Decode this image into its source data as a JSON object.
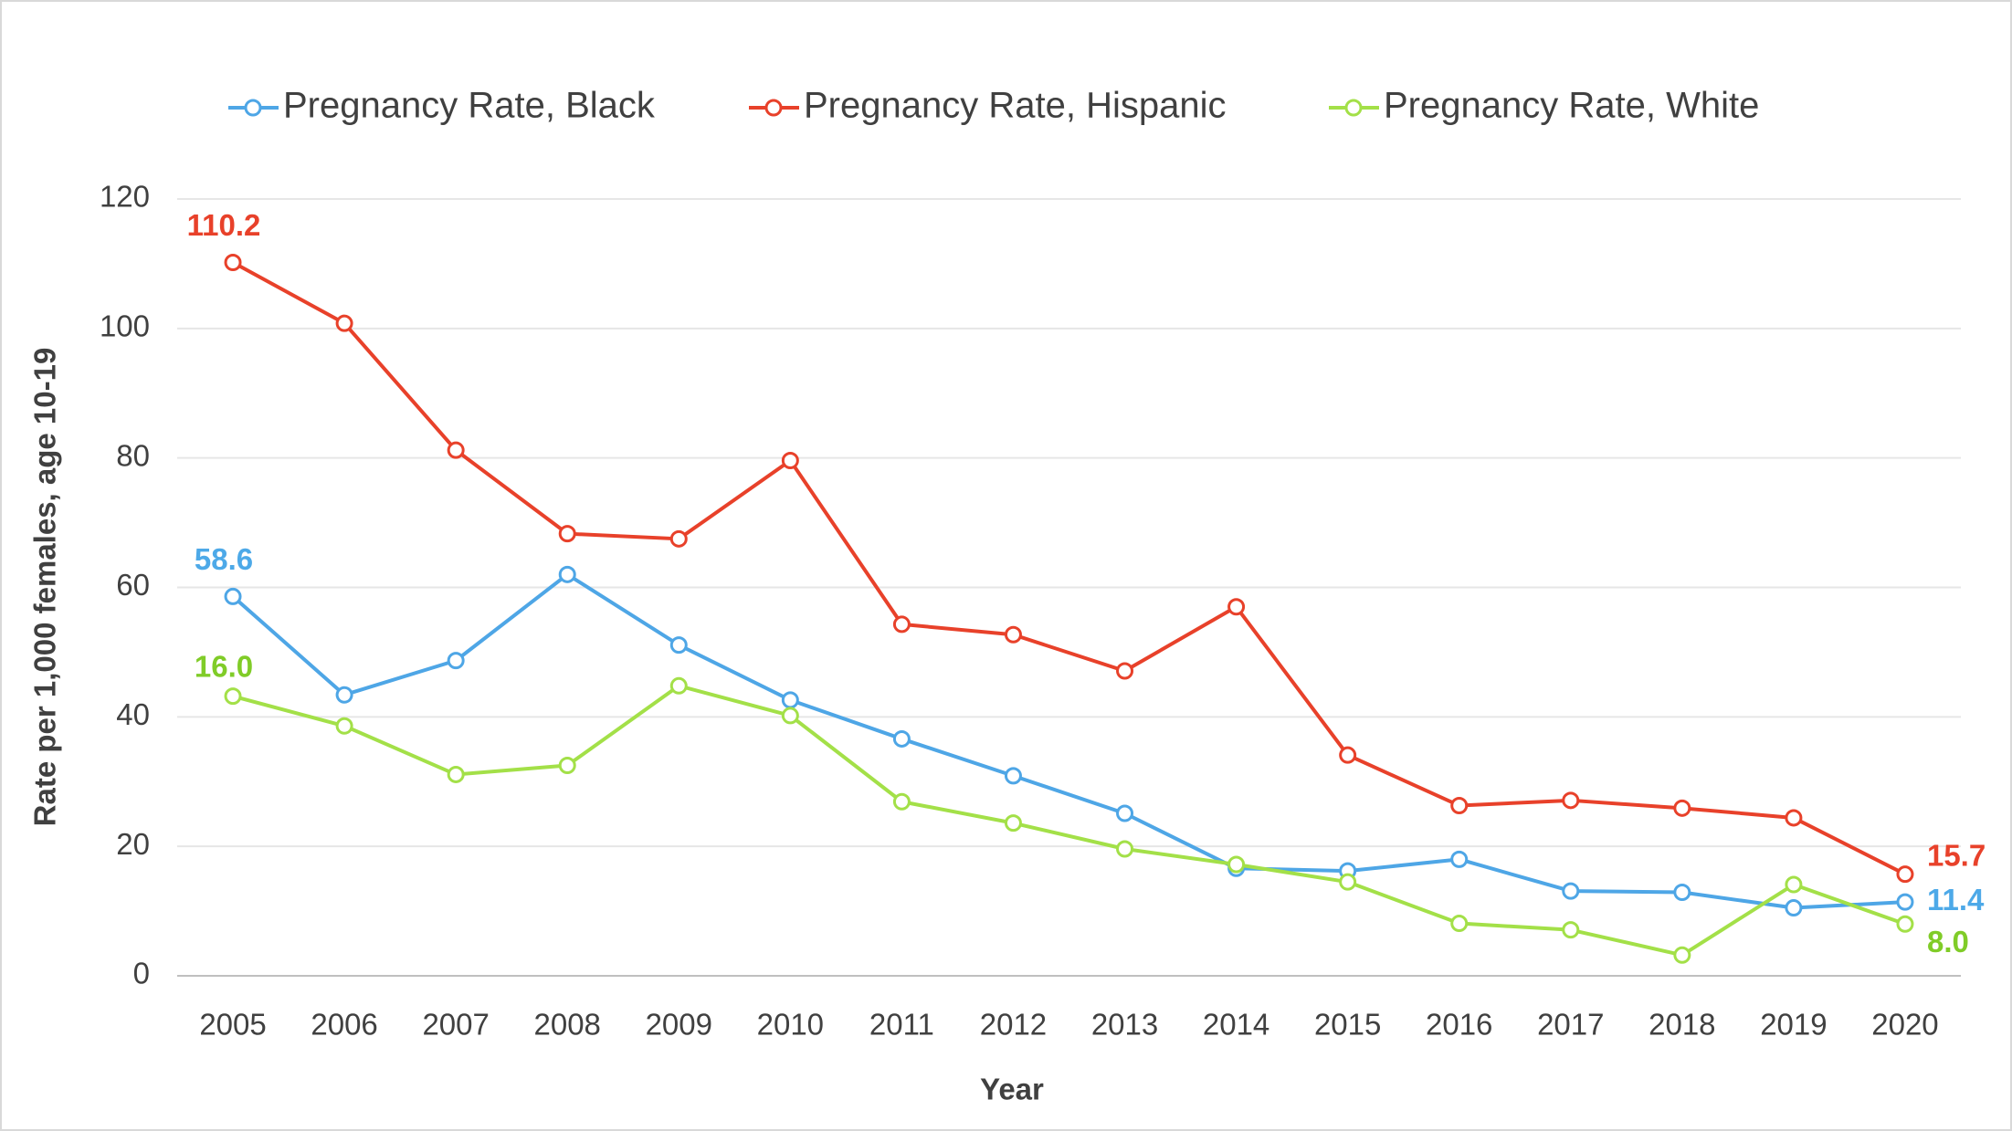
{
  "chart_data": {
    "type": "line",
    "categories": [
      "2005",
      "2006",
      "2007",
      "2008",
      "2009",
      "2010",
      "2011",
      "2012",
      "2013",
      "2014",
      "2015",
      "2016",
      "2017",
      "2018",
      "2019",
      "2020"
    ],
    "series": [
      {
        "name": "Pregnancy Rate, Black",
        "color": "#4ea6e6",
        "label_color": "#4da9e8",
        "values": [
          58.6,
          43.4,
          48.7,
          62.0,
          51.1,
          42.6,
          36.6,
          30.9,
          25.1,
          16.6,
          16.2,
          18.0,
          13.1,
          12.9,
          10.5,
          11.4
        ],
        "value_labels": [
          "58.6",
          null,
          null,
          null,
          null,
          null,
          null,
          null,
          null,
          null,
          null,
          null,
          null,
          null,
          null,
          "11.4"
        ]
      },
      {
        "name": "Pregnancy Rate, Hispanic",
        "color": "#e8412a",
        "label_color": "#e8412a",
        "values": [
          110.2,
          100.8,
          81.2,
          68.3,
          67.5,
          79.6,
          54.3,
          52.7,
          47.1,
          57.0,
          34.1,
          26.3,
          27.1,
          25.9,
          24.4,
          15.7
        ],
        "value_labels": [
          "110.2",
          null,
          null,
          null,
          null,
          null,
          null,
          null,
          null,
          null,
          null,
          null,
          null,
          null,
          null,
          "15.7"
        ]
      },
      {
        "name": "Pregnancy Rate, White",
        "color": "#a3e048",
        "label_color": "#80cc28",
        "values": [
          43.2,
          38.6,
          31.1,
          32.5,
          44.8,
          40.2,
          26.9,
          23.6,
          19.6,
          17.2,
          14.5,
          8.1,
          7.1,
          3.2,
          14.1,
          8.0
        ],
        "value_labels": [
          null,
          null,
          null,
          null,
          null,
          null,
          null,
          null,
          null,
          null,
          null,
          null,
          null,
          null,
          null,
          "8.0"
        ]
      }
    ],
    "annotations": [
      {
        "text": "16.0",
        "color": "#80cc28"
      }
    ],
    "x_label": "Year",
    "y_label": "Rate per 1,000 females, age 10-19",
    "ylim": [
      0,
      120
    ],
    "yticks": [
      0,
      20,
      40,
      60,
      80,
      100,
      120
    ],
    "grid": true,
    "legend": "top"
  }
}
